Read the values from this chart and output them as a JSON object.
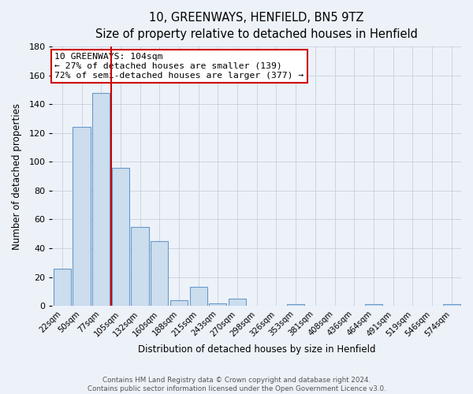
{
  "title": "10, GREENWAYS, HENFIELD, BN5 9TZ",
  "subtitle": "Size of property relative to detached houses in Henfield",
  "xlabel": "Distribution of detached houses by size in Henfield",
  "ylabel": "Number of detached properties",
  "bar_labels": [
    "22sqm",
    "50sqm",
    "77sqm",
    "105sqm",
    "132sqm",
    "160sqm",
    "188sqm",
    "215sqm",
    "243sqm",
    "270sqm",
    "298sqm",
    "326sqm",
    "353sqm",
    "381sqm",
    "408sqm",
    "436sqm",
    "464sqm",
    "491sqm",
    "519sqm",
    "546sqm",
    "574sqm"
  ],
  "bar_values": [
    26,
    124,
    148,
    96,
    55,
    45,
    4,
    13,
    2,
    5,
    0,
    0,
    1,
    0,
    0,
    0,
    1,
    0,
    0,
    0,
    1
  ],
  "bar_color": "#ccdded",
  "bar_edge_color": "#6699cc",
  "property_line_color": "#cc0000",
  "ylim": [
    0,
    180
  ],
  "yticks": [
    0,
    20,
    40,
    60,
    80,
    100,
    120,
    140,
    160,
    180
  ],
  "annotation_title": "10 GREENWAYS: 104sqm",
  "annotation_line1": "← 27% of detached houses are smaller (139)",
  "annotation_line2": "72% of semi-detached houses are larger (377) →",
  "annotation_box_facecolor": "#ffffff",
  "annotation_box_edgecolor": "#cc0000",
  "footer_line1": "Contains HM Land Registry data © Crown copyright and database right 2024.",
  "footer_line2": "Contains public sector information licensed under the Open Government Licence v3.0.",
  "background_color": "#edf2f9",
  "grid_color": "#c8d0dc"
}
